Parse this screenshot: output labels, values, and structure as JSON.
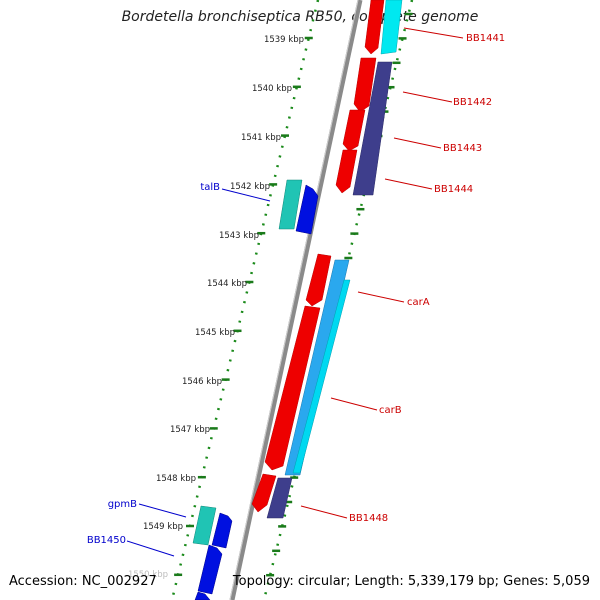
{
  "title": "Bordetella bronchiseptica RB50, complete genome",
  "accession": "Accession: NC_002927",
  "summary": "Topology: circular; Length: 5,339,179 bp; Genes: 5,059",
  "colors": {
    "backbone": "#8a8a8a",
    "tick_major": "#1a7a1a",
    "tick_minor": "#1a8a1a",
    "forward_label": "#0000cc",
    "reverse_label": "#cc0000",
    "gene_red": "#ee0000",
    "gene_cyan": "#00e0ee",
    "gene_teal": "#20c0b0",
    "gene_blue": "#0010e0",
    "gene_navy": "#3a3a88",
    "gene_lightblue": "#2aa8ee"
  },
  "tick_labels": [
    "1539 kbp",
    "1540 kbp",
    "1541 kbp",
    "1542 kbp",
    "1543 kbp",
    "1544 kbp",
    "1545 kbp",
    "1546 kbp",
    "1547 kbp",
    "1548 kbp",
    "1549 kbp",
    "1550 kbp"
  ],
  "forward_genes": [
    "talB",
    "gpmB",
    "BB1450"
  ],
  "reverse_genes": [
    "BB1441",
    "BB1442",
    "BB1443",
    "BB1444",
    "carA",
    "carB",
    "BB1448"
  ]
}
